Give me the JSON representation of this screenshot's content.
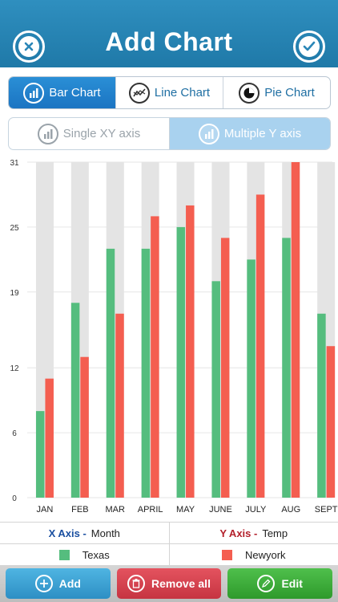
{
  "header": {
    "title": "Add Chart",
    "left_icon": "close-icon",
    "right_icon": "check-icon"
  },
  "chart_types": {
    "selected": "Bar Chart",
    "items": [
      {
        "label": "Bar Chart",
        "icon": "bar-chart-icon"
      },
      {
        "label": "Line Chart",
        "icon": "line-chart-icon"
      },
      {
        "label": "Pie Chart",
        "icon": "pie-chart-icon"
      }
    ]
  },
  "axis_mode": {
    "selected": "Multiple Y axis",
    "items": [
      {
        "label": "Single XY axis",
        "icon": "bar-chart-icon"
      },
      {
        "label": "Multiple Y axis",
        "icon": "bar-chart-icon"
      }
    ]
  },
  "chart_data": {
    "type": "bar",
    "categories": [
      "JAN",
      "FEB",
      "MAR",
      "APRIL",
      "MAY",
      "JUNE",
      "JULY",
      "AUG",
      "SEPT"
    ],
    "series": [
      {
        "name": "Texas",
        "color": "#55bd7e",
        "values": [
          8,
          18,
          23,
          23,
          25,
          20,
          22,
          24,
          17
        ]
      },
      {
        "name": "Newyork",
        "color": "#f45e50",
        "values": [
          11,
          13,
          17,
          26,
          27,
          24,
          28,
          31,
          14
        ]
      }
    ],
    "ylim": [
      0,
      31
    ],
    "yticks": [
      "0",
      "6",
      "12",
      "19",
      "25",
      "31"
    ],
    "background_color": "#e4e4e4",
    "grid": true
  },
  "legend": {
    "x_axis_name": "X Axis -",
    "x_axis_value": "Month",
    "y_axis_name": "Y Axis -",
    "y_axis_value": "Temp",
    "series": [
      {
        "name": "Texas",
        "color": "#55bd7e"
      },
      {
        "name": "Newyork",
        "color": "#f45e50"
      }
    ]
  },
  "toolbar": {
    "add_label": "Add",
    "remove_label": "Remove all",
    "edit_label": "Edit"
  }
}
